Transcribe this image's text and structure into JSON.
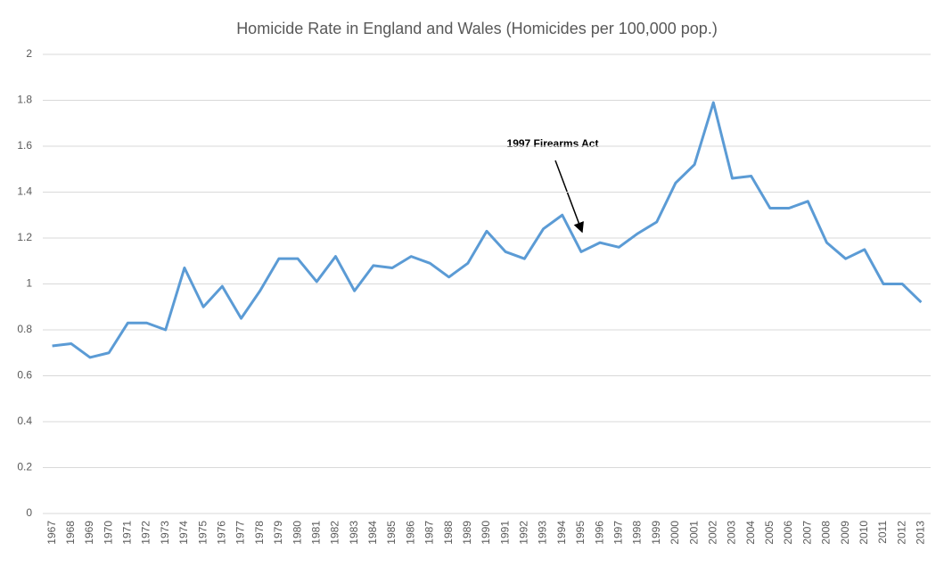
{
  "chart_data": {
    "type": "line",
    "title": "Homicide Rate in England and Wales (Homicides per 100,000 pop.)",
    "annotation": "1997 Firearms Act",
    "categories": [
      "1967",
      "1968",
      "1969",
      "1970",
      "1971",
      "1972",
      "1973",
      "1974",
      "1975",
      "1976",
      "1977",
      "1978",
      "1979",
      "1980",
      "1981",
      "1982",
      "1983",
      "1984",
      "1985",
      "1986",
      "1987",
      "1988",
      "1989",
      "1990",
      "1991",
      "1992",
      "1993",
      "1994",
      "1995",
      "1996",
      "1997",
      "1998",
      "1999",
      "2000",
      "2001",
      "2002",
      "2003",
      "2004",
      "2005",
      "2006",
      "2007",
      "2008",
      "2009",
      "2010",
      "2011",
      "2012",
      "2013"
    ],
    "values": [
      0.73,
      0.74,
      0.68,
      0.7,
      0.83,
      0.83,
      0.8,
      1.07,
      0.9,
      0.99,
      0.85,
      0.97,
      1.11,
      1.11,
      1.01,
      1.12,
      0.97,
      1.08,
      1.07,
      1.12,
      1.09,
      1.03,
      1.09,
      1.23,
      1.14,
      1.11,
      1.24,
      1.3,
      1.14,
      1.18,
      1.16,
      1.22,
      1.27,
      1.44,
      1.52,
      1.79,
      1.46,
      1.47,
      1.33,
      1.33,
      1.36,
      1.18,
      1.11,
      1.15,
      1.0,
      1.0,
      0.92
    ],
    "color": "#5b9bd5",
    "ylim": [
      0,
      2
    ],
    "yticks": [
      0,
      0.2,
      0.4,
      0.6,
      0.8,
      1,
      1.2,
      1.4,
      1.6,
      1.8,
      2
    ],
    "grid": true
  }
}
